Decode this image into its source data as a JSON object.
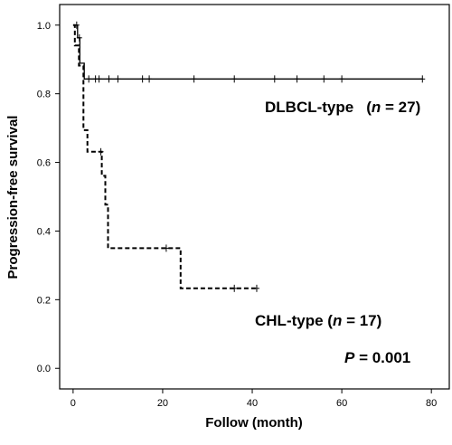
{
  "chart_data": {
    "type": "line",
    "chart_subtype": "kaplan-meier step curves with censor marks",
    "xlabel": "Follow (month)",
    "ylabel": "Progression-free survival",
    "xlim": [
      -3,
      84
    ],
    "ylim": [
      -0.06,
      1.06
    ],
    "x_ticks": [
      0,
      20,
      40,
      60,
      80
    ],
    "y_ticks": [
      0.0,
      0.2,
      0.4,
      0.6,
      0.8,
      1.0
    ],
    "grid": false,
    "series": [
      {
        "name": "DLBCL-type",
        "line_style": "solid",
        "steps": [
          [
            0,
            1.0
          ],
          [
            1,
            0.963
          ],
          [
            1.5,
            0.889
          ],
          [
            2.5,
            0.843
          ],
          [
            78,
            0.843
          ]
        ],
        "censored": [
          [
            0.8,
            1.0
          ],
          [
            1.4,
            0.963
          ],
          [
            3.5,
            0.843
          ],
          [
            5,
            0.843
          ],
          [
            5.8,
            0.843
          ],
          [
            8,
            0.843
          ],
          [
            10,
            0.843
          ],
          [
            15.5,
            0.843
          ],
          [
            17,
            0.843
          ],
          [
            27,
            0.843
          ],
          [
            36,
            0.843
          ],
          [
            45,
            0.843
          ],
          [
            50,
            0.843
          ],
          [
            56,
            0.843
          ],
          [
            60,
            0.843
          ],
          [
            78,
            0.843
          ]
        ]
      },
      {
        "name": "CHL-type",
        "line_style": "dashed",
        "steps": [
          [
            0,
            1.0
          ],
          [
            0.4,
            0.941
          ],
          [
            1.3,
            0.882
          ],
          [
            2.3,
            0.694
          ],
          [
            3.2,
            0.631
          ],
          [
            6.4,
            0.561
          ],
          [
            7.2,
            0.477
          ],
          [
            7.8,
            0.35
          ],
          [
            22,
            0.35
          ],
          [
            24,
            0.233
          ],
          [
            41,
            0.233
          ]
        ],
        "censored": [
          [
            6.2,
            0.631
          ],
          [
            20.8,
            0.35
          ],
          [
            36,
            0.233
          ],
          [
            41,
            0.233
          ]
        ]
      }
    ]
  },
  "annotations": {
    "dlbcl_name": "DLBCL-type",
    "dlbcl_open": "(",
    "dlbcl_n": "n",
    "dlbcl_count": " = 27)",
    "chl_name": "CHL-type (",
    "chl_n": "n",
    "chl_count": " = 17)",
    "p_label": "P",
    "p_value": " = 0.001"
  }
}
